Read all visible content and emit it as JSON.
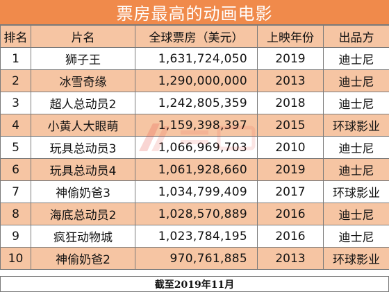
{
  "title": "票房最高的动画电影",
  "headers": [
    "排名",
    "片名",
    "全球票房（美元）",
    "上映年份",
    "出品方"
  ],
  "rows": [
    {
      "rank": "1",
      "name": "狮子王",
      "box": "1,631,724,050",
      "year": "2019",
      "studio": "迪士尼"
    },
    {
      "rank": "2",
      "name": "冰雪奇缘",
      "box": "1,290,000,000",
      "year": "2013",
      "studio": "迪士尼"
    },
    {
      "rank": "3",
      "name": "超人总动员2",
      "box": "1,242,805,359",
      "year": "2018",
      "studio": "迪士尼"
    },
    {
      "rank": "4",
      "name": "小黄人大眼萌",
      "box": "1,159,398,397",
      "year": "2015",
      "studio": "环球影业"
    },
    {
      "rank": "5",
      "name": "玩具总动员3",
      "box": "1,066,969,703",
      "year": "2010",
      "studio": "迪士尼"
    },
    {
      "rank": "6",
      "name": "玩具总动员4",
      "box": "1,061,928,660",
      "year": "2019",
      "studio": "迪士尼"
    },
    {
      "rank": "7",
      "name": "神偷奶爸3",
      "box": "1,034,799,409",
      "year": "2017",
      "studio": "环球影业"
    },
    {
      "rank": "8",
      "name": "海底总动员2",
      "box": "1,028,570,889",
      "year": "2016",
      "studio": "迪士尼"
    },
    {
      "rank": "9",
      "name": "疯狂动物城",
      "box": "1,023,784,195",
      "year": "2016",
      "studio": "迪士尼"
    },
    {
      "rank": "10",
      "name": "神偷奶爸2",
      "box": "970,761,885",
      "year": "2013",
      "studio": "环球影业"
    }
  ],
  "footer": "截至2019年11月",
  "colors": {
    "header_orange": "#f08a4b",
    "row_peach": "#f6c5a3",
    "watermark": "#e8463c"
  }
}
